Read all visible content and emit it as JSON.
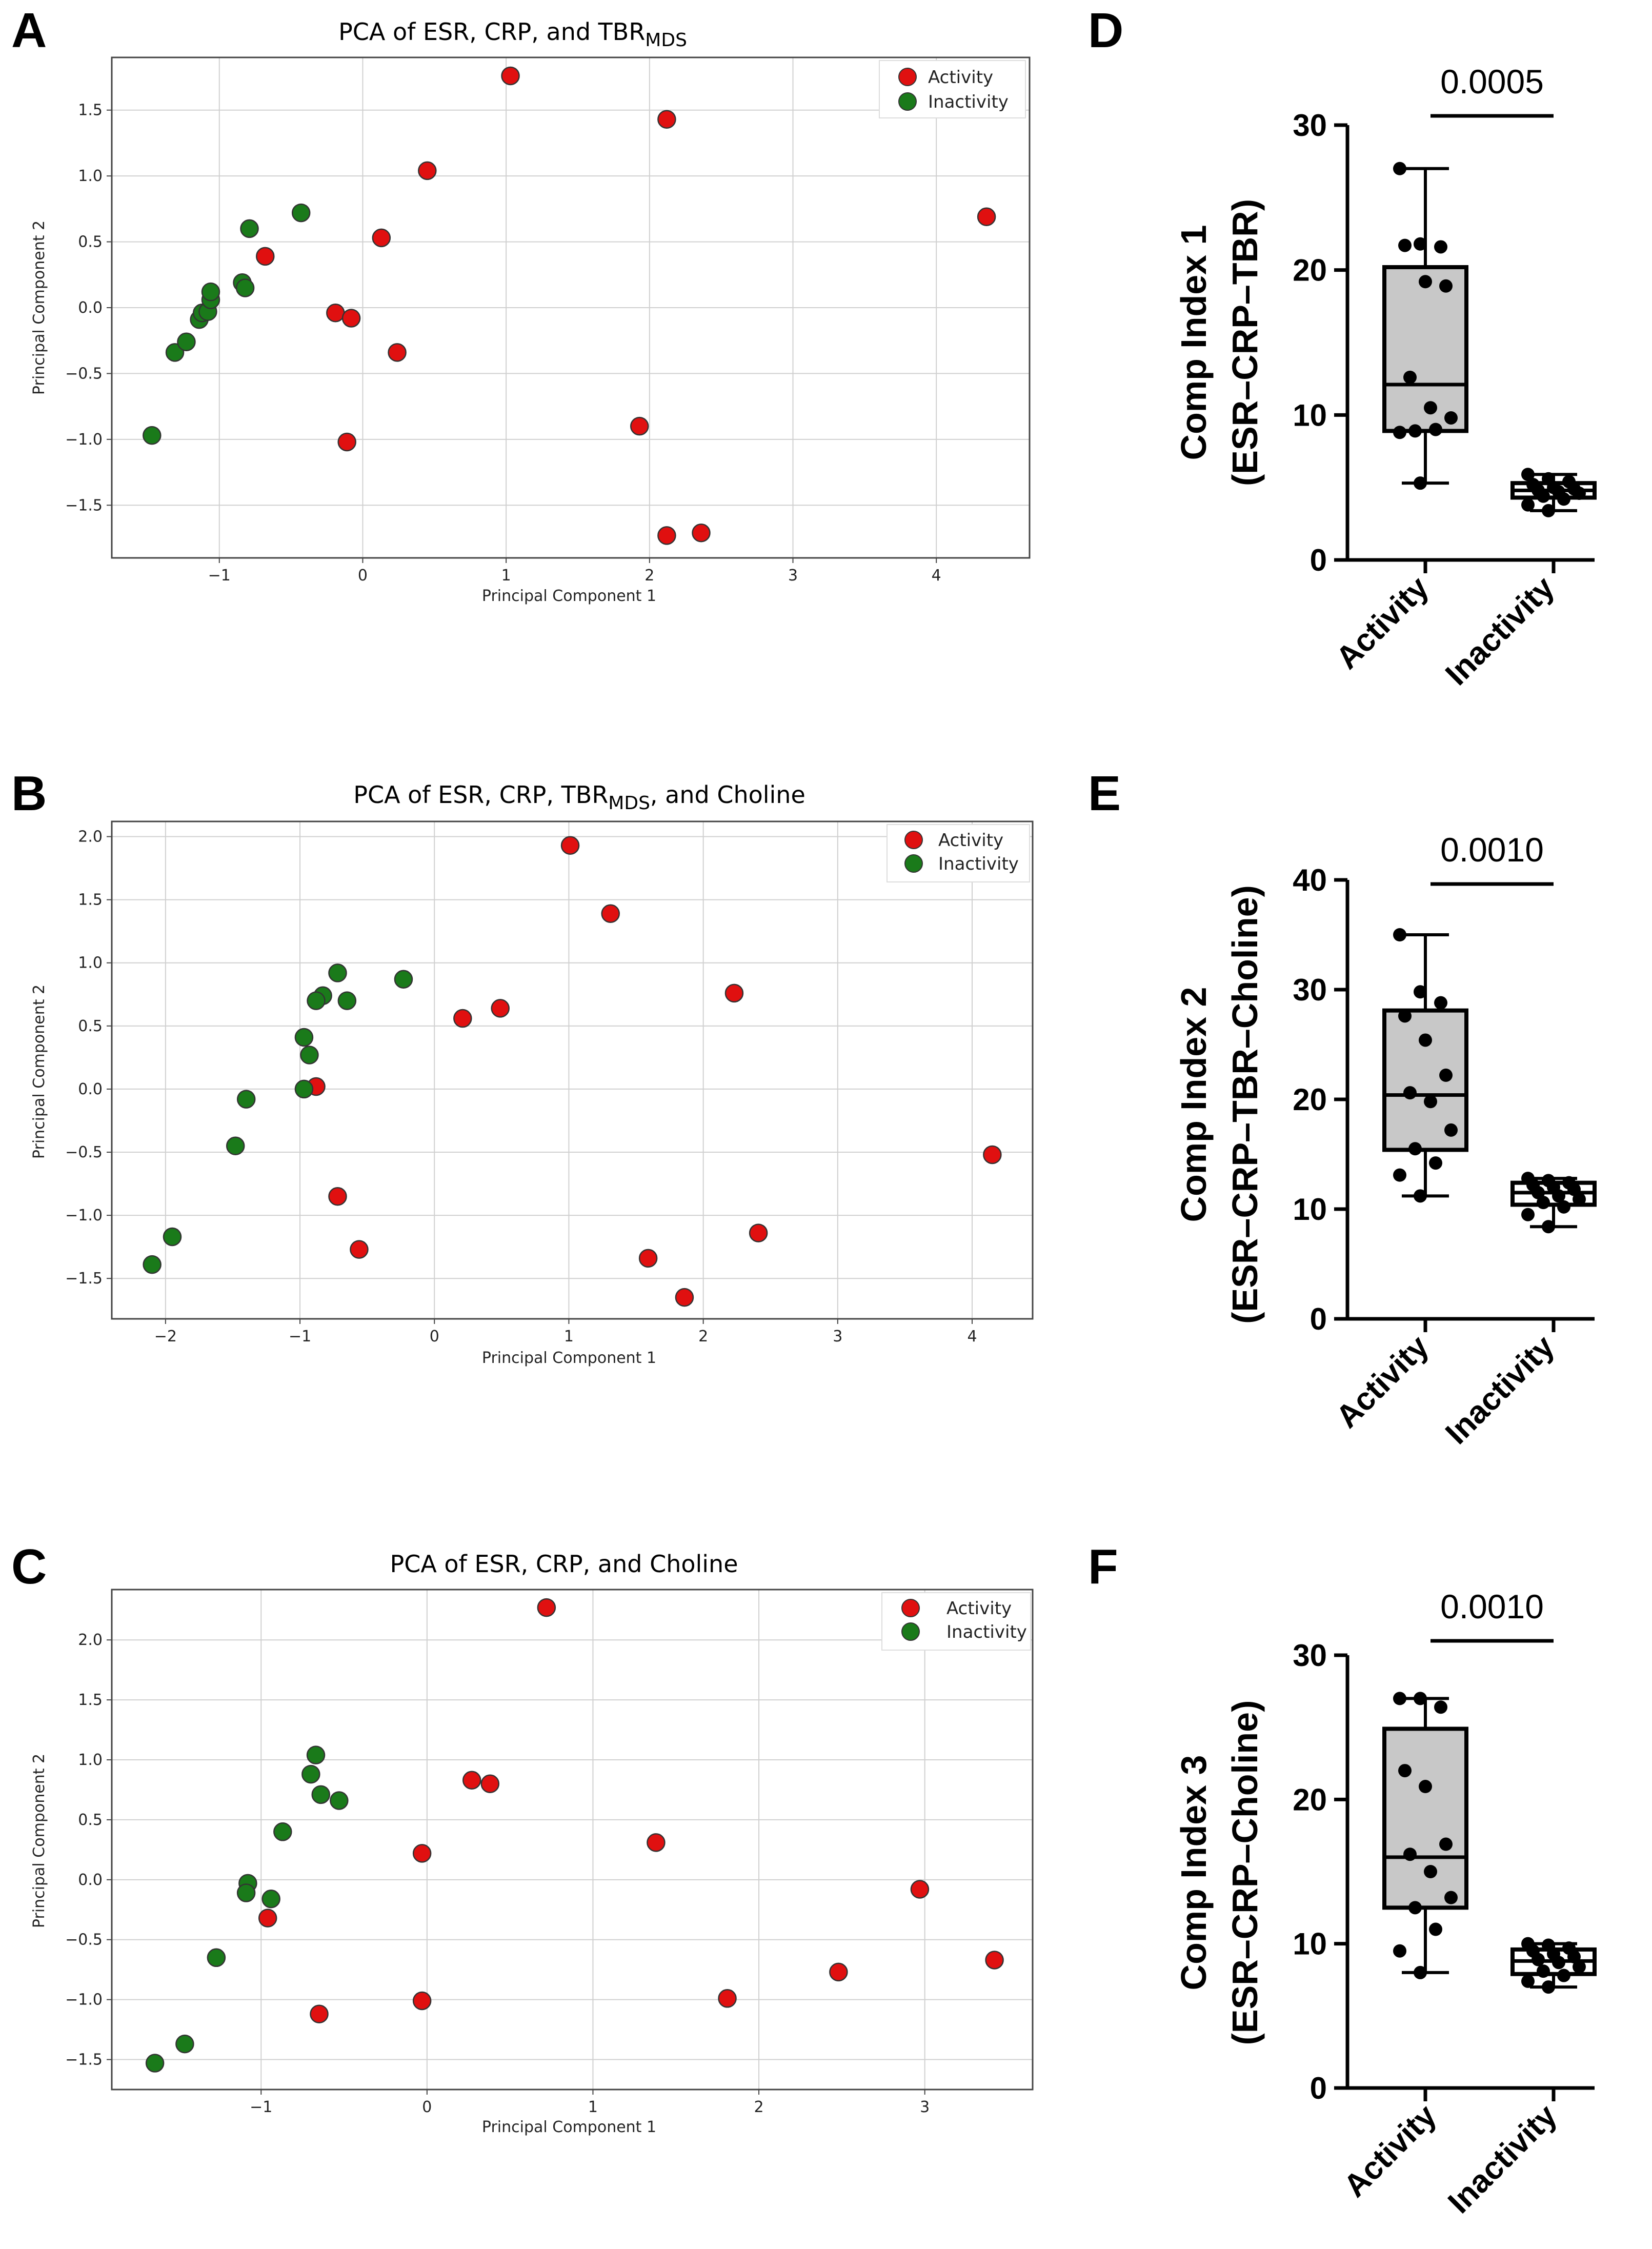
{
  "colors": {
    "activity": "#e01010",
    "inactivity": "#1a7a1a",
    "box_fill": "#c8c8c8",
    "grid": "#d0d0d0"
  },
  "chart_data": [
    {
      "panel": "A",
      "type": "scatter",
      "title": "PCA of  ESR, CRP, and TBR",
      "title_subscript": "MDS",
      "xlabel": "Principal Component 1",
      "ylabel": "Principal Component 2",
      "xlim": [
        -1.75,
        4.65
      ],
      "ylim": [
        -1.9,
        1.9
      ],
      "xticks": [
        -1,
        0,
        1,
        2,
        3,
        4
      ],
      "yticks": [
        -1.5,
        -1.0,
        -0.5,
        0.0,
        0.5,
        1.0,
        1.5
      ],
      "legend": "top-right",
      "series": [
        {
          "name": "Activity",
          "color": "#e01010",
          "points": [
            [
              1.03,
              1.76
            ],
            [
              2.12,
              1.43
            ],
            [
              0.45,
              1.04
            ],
            [
              4.35,
              0.69
            ],
            [
              0.13,
              0.53
            ],
            [
              -0.68,
              0.39
            ],
            [
              -0.19,
              -0.04
            ],
            [
              -0.08,
              -0.08
            ],
            [
              0.24,
              -0.34
            ],
            [
              1.93,
              -0.9
            ],
            [
              -0.11,
              -1.02
            ],
            [
              2.12,
              -1.73
            ],
            [
              2.36,
              -1.71
            ]
          ]
        },
        {
          "name": "Inactivity",
          "color": "#1a7a1a",
          "points": [
            [
              -1.47,
              -0.97
            ],
            [
              -1.31,
              -0.34
            ],
            [
              -1.23,
              -0.26
            ],
            [
              -1.14,
              -0.09
            ],
            [
              -1.12,
              -0.04
            ],
            [
              -1.08,
              -0.03
            ],
            [
              -1.06,
              0.06
            ],
            [
              -1.06,
              0.12
            ],
            [
              -0.84,
              0.19
            ],
            [
              -0.82,
              0.15
            ],
            [
              -0.79,
              0.6
            ],
            [
              -0.43,
              0.72
            ]
          ]
        }
      ]
    },
    {
      "panel": "B",
      "type": "scatter",
      "title": "PCA of  ESR, CRP, TBR",
      "title_subscript": "MDS",
      "title_suffix": ", and Choline",
      "xlabel": "Principal Component 1",
      "ylabel": "Principal Component 2",
      "xlim": [
        -2.4,
        4.45
      ],
      "ylim": [
        -1.82,
        2.12
      ],
      "xticks": [
        -2,
        -1,
        0,
        1,
        2,
        3,
        4
      ],
      "yticks": [
        -1.5,
        -1.0,
        -0.5,
        0.0,
        0.5,
        1.0,
        1.5,
        2.0
      ],
      "legend": "top-right",
      "series": [
        {
          "name": "Activity",
          "color": "#e01010",
          "points": [
            [
              1.01,
              1.93
            ],
            [
              1.31,
              1.39
            ],
            [
              2.23,
              0.76
            ],
            [
              0.49,
              0.64
            ],
            [
              0.21,
              0.56
            ],
            [
              -0.88,
              0.02
            ],
            [
              4.15,
              -0.52
            ],
            [
              -0.72,
              -0.85
            ],
            [
              -0.56,
              -1.27
            ],
            [
              1.59,
              -1.34
            ],
            [
              2.41,
              -1.14
            ],
            [
              1.86,
              -1.65
            ]
          ]
        },
        {
          "name": "Inactivity",
          "color": "#1a7a1a",
          "points": [
            [
              -0.72,
              0.92
            ],
            [
              -0.23,
              0.87
            ],
            [
              -0.65,
              0.7
            ],
            [
              -0.83,
              0.74
            ],
            [
              -0.88,
              0.7
            ],
            [
              -0.97,
              0.41
            ],
            [
              -0.93,
              0.27
            ],
            [
              -0.97,
              0.0
            ],
            [
              -1.4,
              -0.08
            ],
            [
              -1.48,
              -0.45
            ],
            [
              -1.95,
              -1.17
            ],
            [
              -2.1,
              -1.39
            ]
          ]
        }
      ]
    },
    {
      "panel": "C",
      "type": "scatter",
      "title": "PCA of  ESR, CRP, and Choline",
      "xlabel": "Principal Component 1",
      "ylabel": "Principal Component 2",
      "xlim": [
        -1.9,
        3.65
      ],
      "ylim": [
        -1.75,
        2.42
      ],
      "xticks": [
        -1,
        0,
        1,
        2,
        3
      ],
      "yticks": [
        -1.5,
        -1.0,
        -0.5,
        0.0,
        0.5,
        1.0,
        1.5,
        2.0
      ],
      "legend": "top-right",
      "series": [
        {
          "name": "Activity",
          "color": "#e01010",
          "points": [
            [
              0.72,
              2.27
            ],
            [
              0.27,
              0.83
            ],
            [
              0.38,
              0.8
            ],
            [
              1.38,
              0.31
            ],
            [
              -0.03,
              0.22
            ],
            [
              -0.96,
              -0.32
            ],
            [
              2.97,
              -0.08
            ],
            [
              3.42,
              -0.67
            ],
            [
              -0.65,
              -1.12
            ],
            [
              -0.03,
              -1.01
            ],
            [
              1.81,
              -0.99
            ],
            [
              2.48,
              -0.77
            ]
          ]
        },
        {
          "name": "Inactivity",
          "color": "#1a7a1a",
          "points": [
            [
              -0.67,
              1.04
            ],
            [
              -0.7,
              0.88
            ],
            [
              -0.64,
              0.71
            ],
            [
              -0.53,
              0.66
            ],
            [
              -0.87,
              0.4
            ],
            [
              -1.08,
              -0.03
            ],
            [
              -1.09,
              -0.11
            ],
            [
              -0.94,
              -0.16
            ],
            [
              -1.27,
              -0.65
            ],
            [
              -1.46,
              -1.37
            ],
            [
              -1.64,
              -1.53
            ]
          ]
        }
      ]
    },
    {
      "panel": "D",
      "type": "box",
      "ylabel": "Comp Index 1",
      "ylabel2": "(ESR–CRP–TBR)",
      "ylim": [
        0,
        30
      ],
      "yticks": [
        "0",
        "10",
        "20",
        "30"
      ],
      "categories": [
        "Activity",
        "Inactivity"
      ],
      "p_value": "0.0005",
      "boxes": [
        {
          "name": "Activity",
          "min": 5.3,
          "q1": 8.9,
          "median": 12.1,
          "q3": 20.2,
          "max": 27.0,
          "points": [
            27.0,
            21.8,
            21.6,
            21.7,
            19.2,
            18.9,
            12.6,
            10.5,
            9.8,
            8.9,
            9.0,
            8.8,
            5.3
          ],
          "filled": true
        },
        {
          "name": "Inactivity",
          "min": 3.4,
          "q1": 4.3,
          "median": 4.8,
          "q3": 5.3,
          "max": 5.9,
          "points": [
            5.9,
            5.6,
            5.4,
            5.2,
            5.0,
            4.9,
            4.8,
            4.7,
            4.6,
            4.4,
            4.2,
            3.8,
            3.4
          ],
          "filled": false
        }
      ]
    },
    {
      "panel": "E",
      "type": "box",
      "ylabel": "Comp Index 2",
      "ylabel2": "(ESR–CRP–TBR–Choline)",
      "ylim": [
        0,
        40
      ],
      "yticks": [
        "0",
        "10",
        "20",
        "30",
        "40"
      ],
      "categories": [
        "Activity",
        "Inactivity"
      ],
      "p_value": "0.0010",
      "boxes": [
        {
          "name": "Activity",
          "min": 11.2,
          "q1": 15.4,
          "median": 20.4,
          "q3": 28.1,
          "max": 35.0,
          "points": [
            35.0,
            29.8,
            28.8,
            27.6,
            25.4,
            22.2,
            20.6,
            19.8,
            17.2,
            15.5,
            14.2,
            13.1,
            11.2
          ],
          "filled": true
        },
        {
          "name": "Inactivity",
          "min": 8.4,
          "q1": 10.4,
          "median": 11.5,
          "q3": 12.4,
          "max": 12.8,
          "points": [
            12.8,
            12.6,
            12.4,
            12.2,
            12.0,
            11.8,
            11.5,
            11.2,
            10.9,
            10.6,
            10.2,
            9.5,
            8.4
          ],
          "filled": false
        }
      ]
    },
    {
      "panel": "F",
      "type": "box",
      "ylabel": "Comp Index 3",
      "ylabel2": "(ESR–CRP–Choline)",
      "ylim": [
        0,
        30
      ],
      "yticks": [
        "0",
        "10",
        "20",
        "30"
      ],
      "categories": [
        "Activity",
        "Inactivity"
      ],
      "p_value": "0.0010",
      "boxes": [
        {
          "name": "Activity",
          "min": 8.0,
          "q1": 12.5,
          "median": 16.0,
          "q3": 24.9,
          "max": 27.0,
          "points": [
            27.0,
            27.0,
            26.4,
            22.0,
            20.9,
            16.9,
            16.2,
            15.0,
            13.2,
            12.5,
            11.0,
            9.5,
            8.0
          ],
          "filled": true
        },
        {
          "name": "Inactivity",
          "min": 7.0,
          "q1": 7.9,
          "median": 8.8,
          "q3": 9.6,
          "max": 10.0,
          "points": [
            10.0,
            9.9,
            9.7,
            9.5,
            9.3,
            9.1,
            8.9,
            8.7,
            8.4,
            8.1,
            7.8,
            7.4,
            7.0
          ],
          "filled": false
        }
      ]
    }
  ]
}
